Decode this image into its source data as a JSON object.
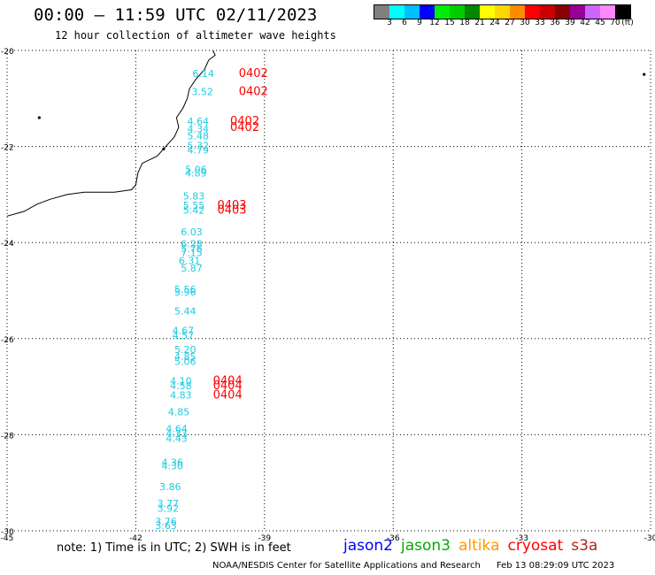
{
  "header": {
    "title": "00:00 – 11:59 UTC 02/11/2023",
    "subtitle": "12 hour collection of altimeter wave heights"
  },
  "legend": {
    "unit": "(ft)",
    "items": [
      {
        "label": "3",
        "color": "#808080"
      },
      {
        "label": "6",
        "color": "#00ffff"
      },
      {
        "label": "9",
        "color": "#00bfff"
      },
      {
        "label": "12",
        "color": "#0000ff"
      },
      {
        "label": "15",
        "color": "#00ee00"
      },
      {
        "label": "18",
        "color": "#00cc00"
      },
      {
        "label": "21",
        "color": "#008800"
      },
      {
        "label": "24",
        "color": "#ffff00"
      },
      {
        "label": "27",
        "color": "#ffd700"
      },
      {
        "label": "30",
        "color": "#ff8c00"
      },
      {
        "label": "33",
        "color": "#ff0000"
      },
      {
        "label": "36",
        "color": "#cc0000"
      },
      {
        "label": "39",
        "color": "#8b0000"
      },
      {
        "label": "42",
        "color": "#990099"
      },
      {
        "label": "45",
        "color": "#cc66ff"
      },
      {
        "label": "70",
        "color": "#ff88ff"
      },
      {
        "label": "",
        "color": "#000000"
      }
    ]
  },
  "map": {
    "lon_range": [
      -45,
      -30
    ],
    "lat_range": [
      -30,
      -20
    ],
    "lon_ticks": [
      "-45",
      "-42",
      "-39",
      "-36",
      "-33",
      "-30"
    ],
    "lat_ticks": [
      "-20",
      "-22",
      "-24",
      "-26",
      "-28",
      "-30"
    ],
    "grid_color": "#000000",
    "coast_color": "#000000"
  },
  "observations": [
    {
      "lon": -40.68,
      "lat": -20.55,
      "swh": "6.14",
      "color": "#1ecbe1"
    },
    {
      "lon": -40.7,
      "lat": -20.93,
      "swh": "3.52",
      "color": "#1ecbe1"
    },
    {
      "lon": -40.8,
      "lat": -21.55,
      "swh": "4.64",
      "color": "#1ecbe1"
    },
    {
      "lon": -40.8,
      "lat": -21.7,
      "swh": "4.34",
      "color": "#1ecbe1"
    },
    {
      "lon": -40.8,
      "lat": -21.85,
      "swh": "5.48",
      "color": "#1ecbe1"
    },
    {
      "lon": -40.8,
      "lat": -22.05,
      "swh": "5.32",
      "color": "#1ecbe1"
    },
    {
      "lon": -40.8,
      "lat": -22.15,
      "swh": "4.79",
      "color": "#1ecbe1"
    },
    {
      "lon": -40.85,
      "lat": -22.55,
      "swh": "5.06",
      "color": "#1ecbe1"
    },
    {
      "lon": -40.85,
      "lat": -22.62,
      "swh": "4.89",
      "color": "#1ecbe1"
    },
    {
      "lon": -40.9,
      "lat": -23.1,
      "swh": "5.83",
      "color": "#1ecbe1"
    },
    {
      "lon": -40.9,
      "lat": -23.3,
      "swh": "5.55",
      "color": "#1ecbe1"
    },
    {
      "lon": -40.9,
      "lat": -23.4,
      "swh": "5.42",
      "color": "#1ecbe1"
    },
    {
      "lon": -40.95,
      "lat": -23.85,
      "swh": "6.03",
      "color": "#1ecbe1"
    },
    {
      "lon": -40.95,
      "lat": -24.1,
      "swh": "6.28",
      "color": "#1ecbe1"
    },
    {
      "lon": -40.95,
      "lat": -24.2,
      "swh": "5.76",
      "color": "#1ecbe1"
    },
    {
      "lon": -40.95,
      "lat": -24.28,
      "swh": "7.15",
      "color": "#1ecbe1"
    },
    {
      "lon": -41.0,
      "lat": -24.45,
      "swh": "6.31",
      "color": "#1ecbe1"
    },
    {
      "lon": -40.95,
      "lat": -24.6,
      "swh": "5.87",
      "color": "#1ecbe1"
    },
    {
      "lon": -41.1,
      "lat": -25.05,
      "swh": "5.56",
      "color": "#1ecbe1"
    },
    {
      "lon": -41.1,
      "lat": -25.1,
      "swh": "5.96",
      "color": "#1ecbe1"
    },
    {
      "lon": -41.1,
      "lat": -25.5,
      "swh": "5.44",
      "color": "#1ecbe1"
    },
    {
      "lon": -41.15,
      "lat": -25.9,
      "swh": "4.67",
      "color": "#1ecbe1"
    },
    {
      "lon": -41.15,
      "lat": -26.0,
      "swh": "4.57",
      "color": "#1ecbe1"
    },
    {
      "lon": -41.1,
      "lat": -26.3,
      "swh": "5.20",
      "color": "#1ecbe1"
    },
    {
      "lon": -41.1,
      "lat": -26.45,
      "swh": "4.85",
      "color": "#1ecbe1"
    },
    {
      "lon": -41.1,
      "lat": -26.55,
      "swh": "5.06",
      "color": "#1ecbe1"
    },
    {
      "lon": -41.2,
      "lat": -26.95,
      "swh": "4.10",
      "color": "#1ecbe1"
    },
    {
      "lon": -41.2,
      "lat": -27.05,
      "swh": "4.58",
      "color": "#1ecbe1"
    },
    {
      "lon": -41.2,
      "lat": -27.25,
      "swh": "4.83",
      "color": "#1ecbe1"
    },
    {
      "lon": -41.25,
      "lat": -27.6,
      "swh": "4.85",
      "color": "#1ecbe1"
    },
    {
      "lon": -41.3,
      "lat": -27.95,
      "swh": "4.64",
      "color": "#1ecbe1"
    },
    {
      "lon": -41.3,
      "lat": -28.05,
      "swh": "4.33",
      "color": "#1ecbe1"
    },
    {
      "lon": -41.3,
      "lat": -28.15,
      "swh": "4.43",
      "color": "#1ecbe1"
    },
    {
      "lon": -41.4,
      "lat": -28.65,
      "swh": "4.36",
      "color": "#1ecbe1"
    },
    {
      "lon": -41.4,
      "lat": -28.72,
      "swh": "4.30",
      "color": "#1ecbe1"
    },
    {
      "lon": -41.45,
      "lat": -29.15,
      "swh": "3.86",
      "color": "#1ecbe1"
    },
    {
      "lon": -41.5,
      "lat": -29.5,
      "swh": "3.77",
      "color": "#1ecbe1"
    },
    {
      "lon": -41.5,
      "lat": -29.6,
      "swh": "3.92",
      "color": "#1ecbe1"
    },
    {
      "lon": -41.55,
      "lat": -29.88,
      "swh": "3.76",
      "color": "#1ecbe1"
    },
    {
      "lon": -41.55,
      "lat": -29.96,
      "swh": "3.63",
      "color": "#1ecbe1"
    }
  ],
  "time_labels": [
    {
      "lon": -39.6,
      "lat": -20.55,
      "text": "0402",
      "color": "#ff0000"
    },
    {
      "lon": -39.6,
      "lat": -20.93,
      "text": "0402",
      "color": "#ff0000"
    },
    {
      "lon": -39.8,
      "lat": -21.55,
      "text": "0402",
      "color": "#ff0000"
    },
    {
      "lon": -39.8,
      "lat": -21.68,
      "text": "0402",
      "color": "#ff0000"
    },
    {
      "lon": -40.1,
      "lat": -23.3,
      "text": "0403",
      "color": "#ff0000"
    },
    {
      "lon": -40.1,
      "lat": -23.4,
      "text": "0403",
      "color": "#ff0000"
    },
    {
      "lon": -40.2,
      "lat": -26.95,
      "text": "0404",
      "color": "#ff0000"
    },
    {
      "lon": -40.2,
      "lat": -27.05,
      "text": "0404",
      "color": "#ff0000"
    },
    {
      "lon": -40.2,
      "lat": -27.25,
      "text": "0404",
      "color": "#ff0000"
    }
  ],
  "coastline": [
    [
      -40.2,
      -20.0
    ],
    [
      -40.15,
      -20.1
    ],
    [
      -40.3,
      -20.2
    ],
    [
      -40.4,
      -20.4
    ],
    [
      -40.6,
      -20.6
    ],
    [
      -40.75,
      -20.8
    ],
    [
      -40.8,
      -21.0
    ],
    [
      -40.9,
      -21.2
    ],
    [
      -41.05,
      -21.4
    ],
    [
      -41.0,
      -21.6
    ],
    [
      -41.1,
      -21.8
    ],
    [
      -41.3,
      -22.0
    ],
    [
      -41.5,
      -22.2
    ],
    [
      -41.85,
      -22.35
    ],
    [
      -41.95,
      -22.55
    ],
    [
      -42.0,
      -22.8
    ],
    [
      -42.1,
      -22.9
    ],
    [
      -42.5,
      -22.95
    ],
    [
      -43.0,
      -22.95
    ],
    [
      -43.2,
      -22.95
    ],
    [
      -43.6,
      -23.0
    ],
    [
      -44.0,
      -23.1
    ],
    [
      -44.3,
      -23.2
    ],
    [
      -44.6,
      -23.35
    ],
    [
      -44.8,
      -23.4
    ],
    [
      -45.0,
      -23.45
    ]
  ],
  "islands": [
    {
      "lon": -44.25,
      "lat": -21.4
    },
    {
      "lon": -41.35,
      "lat": -22.05
    },
    {
      "lon": -30.15,
      "lat": -20.5
    }
  ],
  "footer": {
    "note": "note: 1) Time is in UTC; 2) SWH is in feet",
    "satellites": [
      {
        "name": "jason2",
        "color": "#0000ff"
      },
      {
        "name": "jason3",
        "color": "#00aa00"
      },
      {
        "name": "altika",
        "color": "#ff9900"
      },
      {
        "name": "cryosat",
        "color": "#ff0000"
      },
      {
        "name": "s3a",
        "color": "#b22222"
      }
    ],
    "credit": "NOAA/NESDIS Center for Satellite Applications and Research",
    "timestamp": "Feb 13 08:29:09 UTC 2023"
  }
}
